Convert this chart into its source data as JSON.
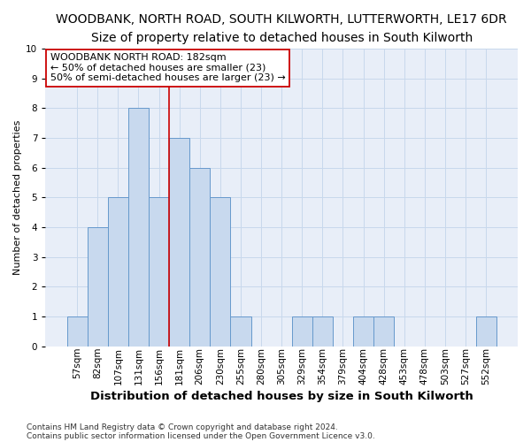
{
  "title": "WOODBANK, NORTH ROAD, SOUTH KILWORTH, LUTTERWORTH, LE17 6DR",
  "subtitle": "Size of property relative to detached houses in South Kilworth",
  "xlabel": "Distribution of detached houses by size in South Kilworth",
  "ylabel": "Number of detached properties",
  "footnote1": "Contains HM Land Registry data © Crown copyright and database right 2024.",
  "footnote2": "Contains public sector information licensed under the Open Government Licence v3.0.",
  "annotation_line1": "WOODBANK NORTH ROAD: 182sqm",
  "annotation_line2": "← 50% of detached houses are smaller (23)",
  "annotation_line3": "50% of semi-detached houses are larger (23) →",
  "bar_labels": [
    "57sqm",
    "82sqm",
    "107sqm",
    "131sqm",
    "156sqm",
    "181sqm",
    "206sqm",
    "230sqm",
    "255sqm",
    "280sqm",
    "305sqm",
    "329sqm",
    "354sqm",
    "379sqm",
    "404sqm",
    "428sqm",
    "453sqm",
    "478sqm",
    "503sqm",
    "527sqm",
    "552sqm"
  ],
  "bar_values": [
    1,
    4,
    5,
    8,
    5,
    7,
    6,
    5,
    1,
    0,
    0,
    1,
    1,
    0,
    1,
    1,
    0,
    0,
    0,
    0,
    1
  ],
  "bar_color": "#c8d9ee",
  "bar_edge_color": "#6699cc",
  "red_line_index": 5,
  "ylim": [
    0,
    10
  ],
  "yticks": [
    0,
    1,
    2,
    3,
    4,
    5,
    6,
    7,
    8,
    9,
    10
  ],
  "grid_color": "#c8d8ec",
  "bg_color": "#e8eef8",
  "red_line_color": "#cc0000",
  "title_fontsize": 10,
  "subtitle_fontsize": 9,
  "xlabel_fontsize": 9.5,
  "ylabel_fontsize": 8,
  "tick_fontsize": 7.5,
  "annotation_fontsize": 8,
  "footnote_fontsize": 6.5
}
